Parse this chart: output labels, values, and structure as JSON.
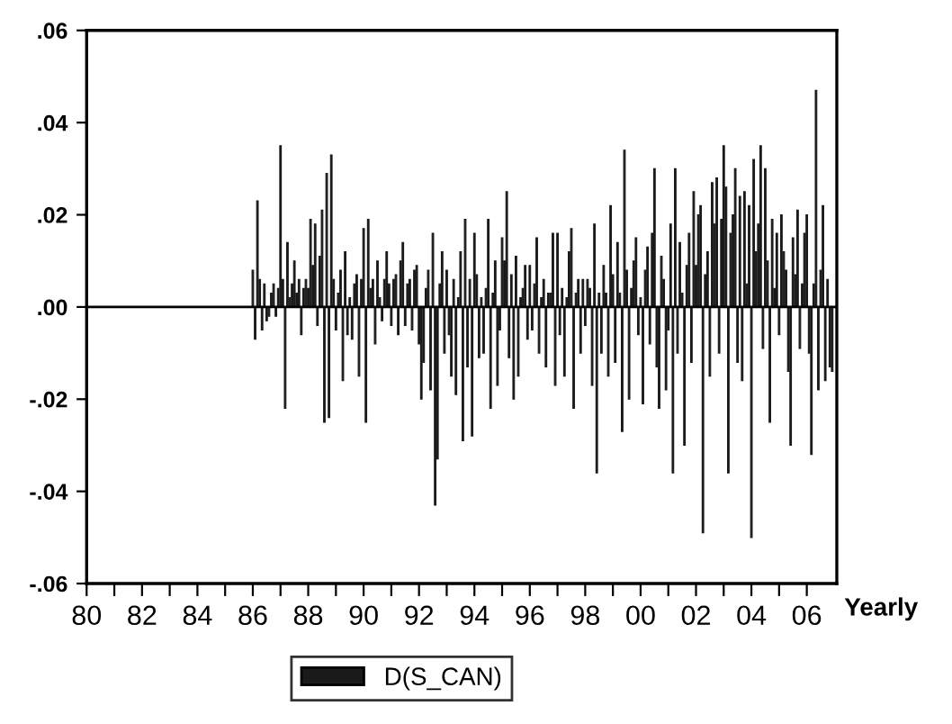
{
  "chart_data": {
    "type": "bar",
    "xlabel": "Yearly",
    "legend": "bottom",
    "grid": false,
    "xlim": [
      "1980-01",
      "2007-02"
    ],
    "xticks": [
      {
        "value": "1980-01",
        "label": "80"
      },
      {
        "value": "1981-01",
        "label": null
      },
      {
        "value": "1982-01",
        "label": "82"
      },
      {
        "value": "1983-01",
        "label": null
      },
      {
        "value": "1984-01",
        "label": "84"
      },
      {
        "value": "1985-01",
        "label": null
      },
      {
        "value": "1986-01",
        "label": "86"
      },
      {
        "value": "1987-01",
        "label": null
      },
      {
        "value": "1988-01",
        "label": "88"
      },
      {
        "value": "1989-01",
        "label": null
      },
      {
        "value": "1990-01",
        "label": "90"
      },
      {
        "value": "1991-01",
        "label": null
      },
      {
        "value": "1992-01",
        "label": "92"
      },
      {
        "value": "1993-01",
        "label": null
      },
      {
        "value": "1994-01",
        "label": "94"
      },
      {
        "value": "1995-01",
        "label": null
      },
      {
        "value": "1996-01",
        "label": "96"
      },
      {
        "value": "1997-01",
        "label": null
      },
      {
        "value": "1998-01",
        "label": "98"
      },
      {
        "value": "1999-01",
        "label": null
      },
      {
        "value": "2000-01",
        "label": "00"
      },
      {
        "value": "2001-01",
        "label": null
      },
      {
        "value": "2002-01",
        "label": "02"
      },
      {
        "value": "2003-01",
        "label": null
      },
      {
        "value": "2004-01",
        "label": "04"
      },
      {
        "value": "2005-01",
        "label": null
      },
      {
        "value": "2006-01",
        "label": "06"
      }
    ],
    "ylim": [
      -0.06,
      0.06
    ],
    "yticks": [
      {
        "value": -0.06,
        "label": "-.06"
      },
      {
        "value": -0.04,
        "label": "-.04"
      },
      {
        "value": -0.02,
        "label": "-.02"
      },
      {
        "value": 0,
        "label": ".00"
      },
      {
        "value": 0.02,
        "label": ".02"
      },
      {
        "value": 0.04,
        "label": ".04"
      },
      {
        "value": 0.06,
        "label": ".06"
      }
    ],
    "ref_lines": [
      {
        "axis": "y",
        "value": 0,
        "color": "#000000"
      }
    ],
    "x": [
      "1986-01",
      "1986-02",
      "1986-03",
      "1986-04",
      "1986-05",
      "1986-06",
      "1986-07",
      "1986-08",
      "1986-09",
      "1986-10",
      "1986-11",
      "1986-12",
      "1987-01",
      "1987-02",
      "1987-03",
      "1987-04",
      "1987-05",
      "1987-06",
      "1987-07",
      "1987-08",
      "1987-09",
      "1987-10",
      "1987-11",
      "1987-12",
      "1988-01",
      "1988-02",
      "1988-03",
      "1988-04",
      "1988-05",
      "1988-06",
      "1988-07",
      "1988-08",
      "1988-09",
      "1988-10",
      "1988-11",
      "1988-12",
      "1989-01",
      "1989-02",
      "1989-03",
      "1989-04",
      "1989-05",
      "1989-06",
      "1989-07",
      "1989-08",
      "1989-09",
      "1989-10",
      "1989-11",
      "1989-12",
      "1990-01",
      "1990-02",
      "1990-03",
      "1990-04",
      "1990-05",
      "1990-06",
      "1990-07",
      "1990-08",
      "1990-09",
      "1990-10",
      "1990-11",
      "1990-12",
      "1991-01",
      "1991-02",
      "1991-03",
      "1991-04",
      "1991-05",
      "1991-06",
      "1991-07",
      "1991-08",
      "1991-09",
      "1991-10",
      "1991-11",
      "1991-12",
      "1992-01",
      "1992-02",
      "1992-03",
      "1992-04",
      "1992-05",
      "1992-06",
      "1992-07",
      "1992-08",
      "1992-09",
      "1992-10",
      "1992-11",
      "1992-12",
      "1993-01",
      "1993-02",
      "1993-03",
      "1993-04",
      "1993-05",
      "1993-06",
      "1993-07",
      "1993-08",
      "1993-09",
      "1993-10",
      "1993-11",
      "1993-12",
      "1994-01",
      "1994-02",
      "1994-03",
      "1994-04",
      "1994-05",
      "1994-06",
      "1994-07",
      "1994-08",
      "1994-09",
      "1994-10",
      "1994-11",
      "1994-12",
      "1995-01",
      "1995-02",
      "1995-03",
      "1995-04",
      "1995-05",
      "1995-06",
      "1995-07",
      "1995-08",
      "1995-09",
      "1995-10",
      "1995-11",
      "1995-12",
      "1996-01",
      "1996-02",
      "1996-03",
      "1996-04",
      "1996-05",
      "1996-06",
      "1996-07",
      "1996-08",
      "1996-09",
      "1996-10",
      "1996-11",
      "1996-12",
      "1997-01",
      "1997-02",
      "1997-03",
      "1997-04",
      "1997-05",
      "1997-06",
      "1997-07",
      "1997-08",
      "1997-09",
      "1997-10",
      "1997-11",
      "1997-12",
      "1998-01",
      "1998-02",
      "1998-03",
      "1998-04",
      "1998-05",
      "1998-06",
      "1998-07",
      "1998-08",
      "1998-09",
      "1998-10",
      "1998-11",
      "1998-12",
      "1999-01",
      "1999-02",
      "1999-03",
      "1999-04",
      "1999-05",
      "1999-06",
      "1999-07",
      "1999-08",
      "1999-09",
      "1999-10",
      "1999-11",
      "1999-12",
      "2000-01",
      "2000-02",
      "2000-03",
      "2000-04",
      "2000-05",
      "2000-06",
      "2000-07",
      "2000-08",
      "2000-09",
      "2000-10",
      "2000-11",
      "2000-12",
      "2001-01",
      "2001-02",
      "2001-03",
      "2001-04",
      "2001-05",
      "2001-06",
      "2001-07",
      "2001-08",
      "2001-09",
      "2001-10",
      "2001-11",
      "2001-12",
      "2002-01",
      "2002-02",
      "2002-03",
      "2002-04",
      "2002-05",
      "2002-06",
      "2002-07",
      "2002-08",
      "2002-09",
      "2002-10",
      "2002-11",
      "2002-12",
      "2003-01",
      "2003-02",
      "2003-03",
      "2003-04",
      "2003-05",
      "2003-06",
      "2003-07",
      "2003-08",
      "2003-09",
      "2003-10",
      "2003-11",
      "2003-12",
      "2004-01",
      "2004-02",
      "2004-03",
      "2004-04",
      "2004-05",
      "2004-06",
      "2004-07",
      "2004-08",
      "2004-09",
      "2004-10",
      "2004-11",
      "2004-12",
      "2005-01",
      "2005-02",
      "2005-03",
      "2005-04",
      "2005-05",
      "2005-06",
      "2005-07",
      "2005-08",
      "2005-09",
      "2005-10",
      "2005-11",
      "2005-12",
      "2006-01",
      "2006-02",
      "2006-03",
      "2006-04",
      "2006-05",
      "2006-06",
      "2006-07",
      "2006-08",
      "2006-09",
      "2006-10",
      "2006-11",
      "2006-12"
    ],
    "series": [
      {
        "name": "D(S_CAN)",
        "color": "#1a1a1a",
        "values": [
          0.008,
          -0.007,
          0.023,
          0.006,
          -0.005,
          0.005,
          -0.003,
          -0.002,
          0.003,
          0.005,
          -0.002,
          0.004,
          0.035,
          0.006,
          -0.022,
          0.014,
          0.002,
          0.005,
          0.01,
          0.003,
          0.006,
          -0.006,
          0.004,
          0.006,
          0.004,
          0.019,
          0.009,
          0.018,
          -0.004,
          0.011,
          0.021,
          -0.025,
          0.029,
          -0.024,
          0.033,
          0.006,
          -0.005,
          0.003,
          0.008,
          -0.016,
          0.012,
          -0.006,
          0.002,
          -0.007,
          0.005,
          0.007,
          -0.015,
          0.006,
          0.017,
          -0.025,
          0.019,
          0.004,
          0.006,
          -0.008,
          0.01,
          0.002,
          -0.003,
          0.006,
          0.012,
          0.005,
          -0.004,
          0.006,
          0.007,
          -0.006,
          0.01,
          0.014,
          -0.004,
          0.005,
          0.006,
          -0.005,
          0.008,
          0.009,
          -0.008,
          -0.02,
          -0.012,
          0.004,
          0.008,
          -0.018,
          0.016,
          -0.043,
          -0.033,
          0.005,
          0.012,
          -0.01,
          0.008,
          -0.006,
          -0.015,
          0.006,
          -0.019,
          0.002,
          0.012,
          -0.029,
          0.019,
          -0.013,
          0.006,
          -0.028,
          0.016,
          0.007,
          -0.011,
          0.002,
          -0.01,
          0.004,
          0.019,
          -0.022,
          0.003,
          0.01,
          -0.017,
          -0.005,
          0.015,
          0.01,
          0.025,
          -0.011,
          0.007,
          -0.02,
          0.011,
          -0.015,
          0.002,
          0.004,
          0.009,
          -0.007,
          0.009,
          -0.005,
          0.005,
          0.015,
          -0.01,
          0.002,
          0.006,
          -0.013,
          0.003,
          0.003,
          0.016,
          -0.017,
          0.016,
          -0.006,
          0.004,
          -0.015,
          0.002,
          0.012,
          0.017,
          -0.022,
          0.003,
          0.006,
          -0.01,
          0.006,
          -0.004,
          0.006,
          0.004,
          -0.017,
          0.018,
          -0.036,
          0.003,
          -0.01,
          0.009,
          0.003,
          -0.015,
          0.022,
          0.007,
          -0.012,
          0.014,
          0.003,
          -0.027,
          0.034,
          0.008,
          -0.02,
          0.004,
          0.01,
          0.015,
          -0.006,
          0.002,
          -0.021,
          0.008,
          0.013,
          -0.008,
          0.016,
          0.03,
          -0.013,
          -0.022,
          0.011,
          0.006,
          -0.018,
          -0.005,
          0.018,
          -0.036,
          0.03,
          -0.01,
          0.014,
          0.003,
          -0.03,
          0.009,
          0.016,
          -0.012,
          0.025,
          0.009,
          0.02,
          0.022,
          -0.049,
          0.007,
          0.012,
          -0.015,
          0.027,
          0.018,
          0.028,
          -0.01,
          0.019,
          0.035,
          0.026,
          -0.036,
          0.016,
          0.02,
          0.03,
          -0.012,
          0.024,
          -0.016,
          0.025,
          0.005,
          0.022,
          -0.05,
          0.032,
          0.012,
          0.018,
          0.035,
          -0.009,
          0.03,
          0.01,
          -0.025,
          0.019,
          0.004,
          0.016,
          -0.006,
          0.02,
          0.012,
          0.008,
          -0.014,
          -0.03,
          0.015,
          0.007,
          0.021,
          -0.009,
          0.005,
          0.016,
          0.02,
          -0.01,
          -0.032,
          0.005,
          0.047,
          -0.018,
          0.008,
          0.022,
          -0.016,
          0.006,
          -0.013,
          -0.014
        ]
      }
    ]
  }
}
